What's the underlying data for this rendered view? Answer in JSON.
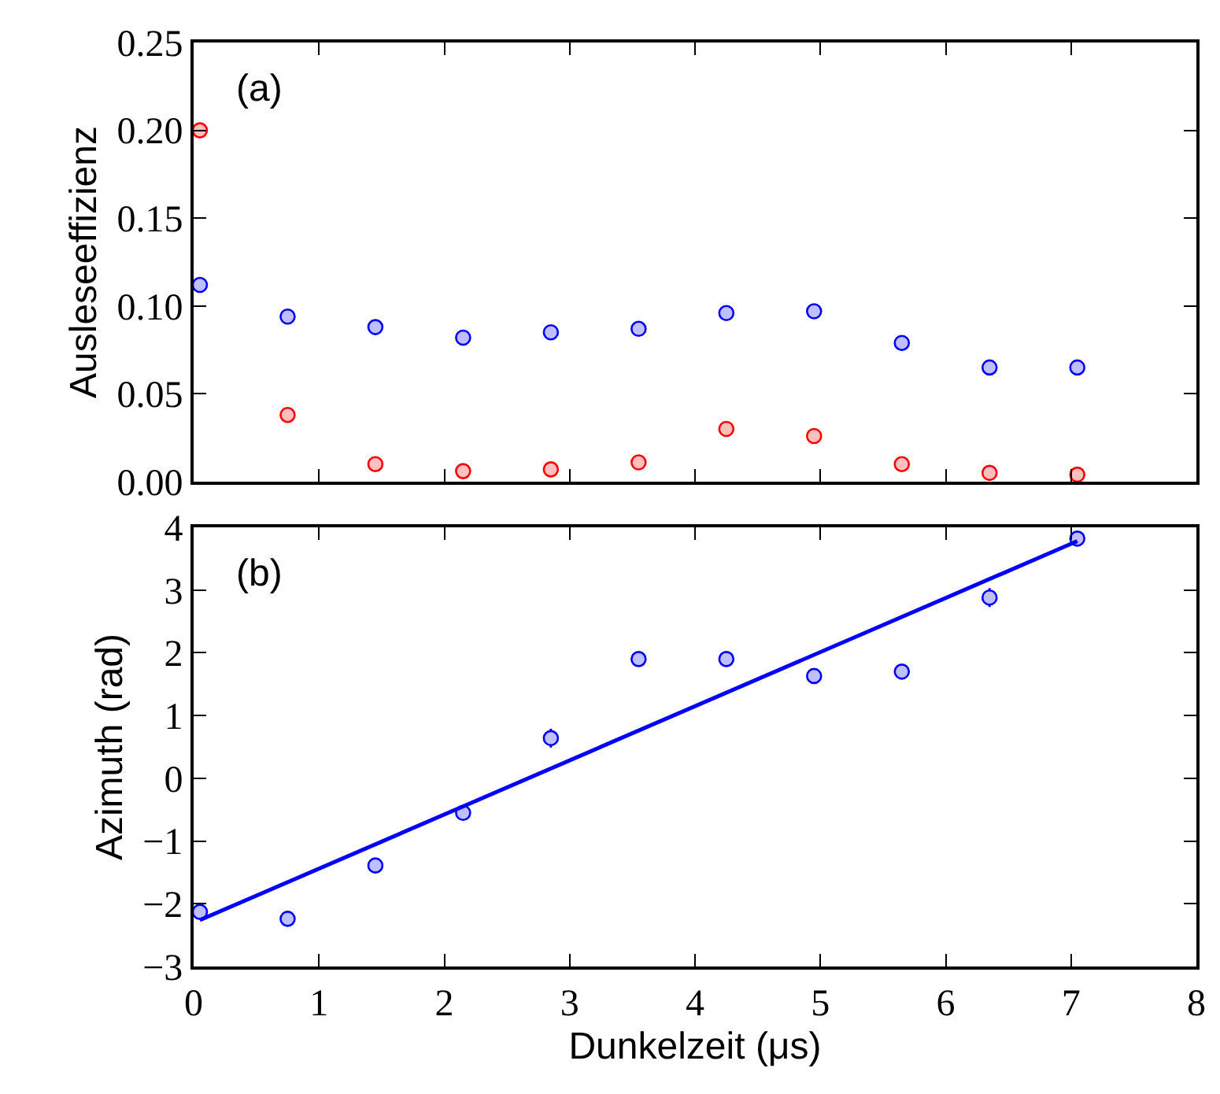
{
  "chart_data": [
    {
      "type": "scatter",
      "ylabel": "Ausleseeffizienz",
      "annotations": [
        "(a)"
      ],
      "marker": "circle",
      "tick_labels": "y",
      "x": [
        0.05,
        0.75,
        1.45,
        2.15,
        2.85,
        3.55,
        4.25,
        4.95,
        5.65,
        6.35,
        7.05
      ],
      "xlim": [
        0,
        8
      ],
      "xticks": [
        0,
        1,
        2,
        3,
        4,
        5,
        6,
        7,
        8
      ],
      "ylim": [
        0,
        0.25
      ],
      "yticks": [
        {
          "value": 0,
          "label": "0.00"
        },
        0.05,
        {
          "value": 0.1,
          "label": "0.10"
        },
        0.15,
        {
          "value": 0.2,
          "label": "0.20"
        },
        0.25
      ],
      "series": [
        {
          "color": "#0000ff",
          "values": [
            0.112,
            0.094,
            0.088,
            0.082,
            0.085,
            0.087,
            0.096,
            0.097,
            0.079,
            0.065,
            0.065
          ]
        },
        {
          "color": "#ff0000",
          "values": [
            0.2,
            0.038,
            0.01,
            0.006,
            0.007,
            0.011,
            0.03,
            0.026,
            0.01,
            0.005,
            0.004
          ]
        }
      ]
    },
    {
      "type": "scatter",
      "xlabel": "Dunkelzeit (μs)",
      "ylabel": "Azimuth (rad)",
      "annotations": [
        "(b)"
      ],
      "marker": "circle",
      "x": [
        0.05,
        0.75,
        1.45,
        2.15,
        2.85,
        3.55,
        4.25,
        4.95,
        5.65,
        6.35,
        7.05
      ],
      "xlim": [
        0,
        8
      ],
      "xticks": [
        0,
        1,
        2,
        3,
        4,
        5,
        6,
        7,
        8
      ],
      "ylim": [
        -3,
        4
      ],
      "yticks": [
        {
          "value": -3,
          "label": "−3"
        },
        {
          "value": -2,
          "label": "−2"
        },
        {
          "value": -1,
          "label": "−1"
        },
        0,
        1,
        2,
        3,
        4
      ],
      "series": [
        {
          "color": "#0000ff",
          "values": [
            -2.13,
            -2.24,
            -1.39,
            -0.55,
            0.64,
            1.9,
            1.9,
            1.63,
            1.7,
            2.88,
            3.82
          ],
          "errors": [
            null,
            null,
            null,
            null,
            0.15,
            null,
            null,
            null,
            null,
            0.15,
            0.1
          ]
        },
        {
          "type": "line",
          "color": "#0000ff",
          "x": [
            0.05,
            7.05
          ],
          "values": [
            -2.26,
            3.78
          ],
          "line_style": "solid",
          "marker": "none"
        }
      ]
    }
  ]
}
